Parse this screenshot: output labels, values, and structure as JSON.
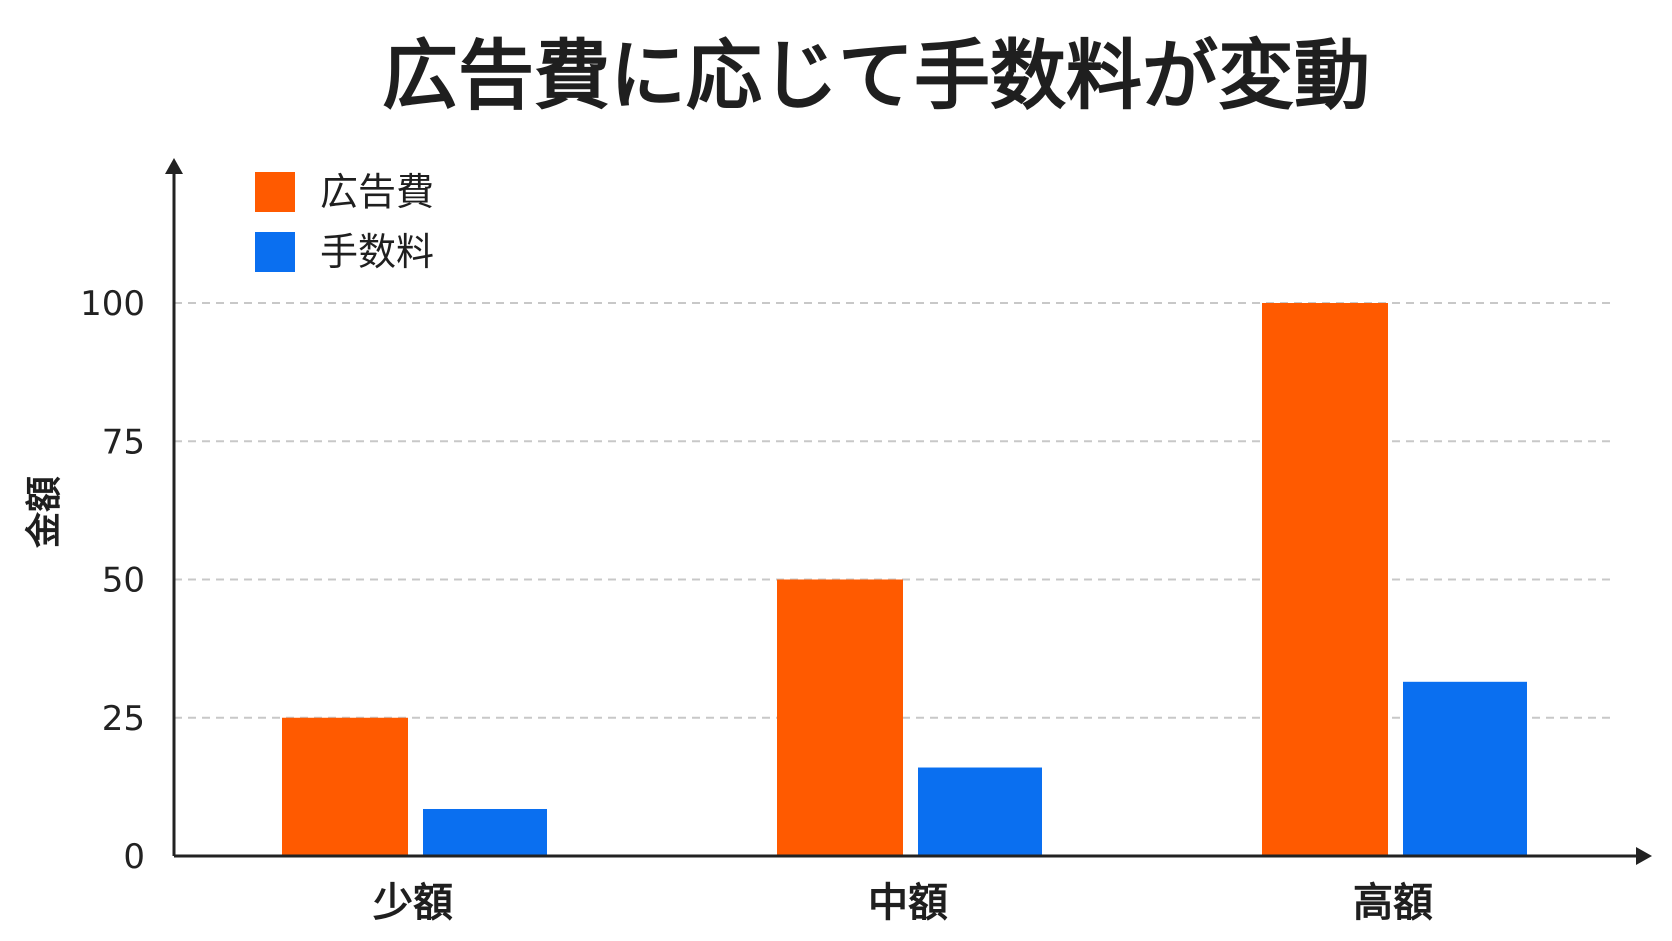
{
  "chart_data": {
    "type": "bar",
    "title": "広告費に応じて手数料が変動",
    "ylabel": "金額",
    "xlabel": "",
    "categories": [
      "少額",
      "中額",
      "高額"
    ],
    "series": [
      {
        "name": "広告費",
        "values": [
          25,
          50,
          100
        ],
        "color": "#ff5a00"
      },
      {
        "name": "手数料",
        "values": [
          8.5,
          16,
          31.5
        ],
        "color": "#0a6ff0"
      }
    ],
    "ylim": [
      0,
      125
    ],
    "yticks": [
      0,
      25,
      50,
      75,
      100
    ],
    "grid": true,
    "legend_position": "top-left"
  }
}
